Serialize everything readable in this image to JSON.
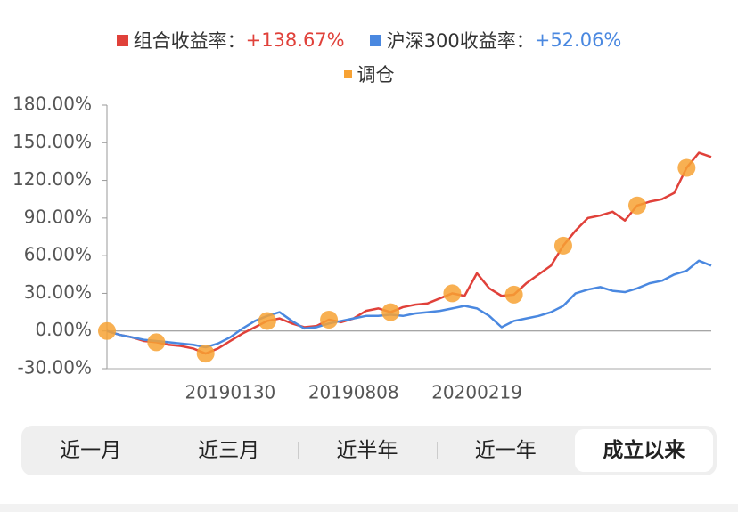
{
  "chart_data": {
    "type": "line",
    "series": [
      {
        "name": "组合收益率：",
        "summary": "+138.67%",
        "color": "#e0413a",
        "values": [
          0,
          -3,
          -5,
          -8,
          -9,
          -11,
          -12,
          -14,
          -18,
          -14,
          -8,
          -2,
          3,
          8,
          10,
          6,
          3,
          4,
          9,
          7,
          10,
          16,
          18,
          15,
          19,
          21,
          22,
          26,
          30,
          28,
          46,
          34,
          28,
          29,
          38,
          45,
          52,
          68,
          80,
          90,
          92,
          95,
          88,
          100,
          103,
          105,
          110,
          130,
          142,
          138.67
        ]
      },
      {
        "name": "沪深300收益率：",
        "summary": "+52.06%",
        "color": "#4a88e0",
        "values": [
          0,
          -3,
          -5,
          -7,
          -8,
          -9,
          -10,
          -11,
          -13,
          -10,
          -5,
          2,
          8,
          12,
          15,
          8,
          2,
          3,
          6,
          8,
          10,
          12,
          12,
          13,
          12,
          14,
          15,
          16,
          18,
          20,
          18,
          12,
          3,
          8,
          10,
          12,
          15,
          20,
          30,
          33,
          35,
          32,
          31,
          34,
          38,
          40,
          45,
          48,
          56,
          52.06
        ]
      },
      {
        "name": "调仓",
        "type": "scatter",
        "color": "#f7a234",
        "values": [
          0,
          null,
          null,
          null,
          -9,
          null,
          null,
          null,
          -18,
          null,
          null,
          null,
          null,
          8,
          null,
          null,
          null,
          null,
          9,
          null,
          null,
          null,
          null,
          15,
          null,
          null,
          null,
          null,
          30,
          null,
          null,
          null,
          null,
          29,
          null,
          null,
          null,
          68,
          null,
          null,
          null,
          null,
          null,
          100,
          null,
          null,
          null,
          130,
          null,
          null
        ]
      }
    ],
    "categories": [
      null,
      null,
      null,
      null,
      null,
      null,
      null,
      null,
      null,
      null,
      "20190130",
      null,
      null,
      null,
      null,
      null,
      null,
      null,
      null,
      null,
      "20190808",
      null,
      null,
      null,
      null,
      null,
      null,
      null,
      null,
      null,
      "20200219",
      null,
      null,
      null,
      null,
      null,
      null,
      null,
      null,
      null,
      null,
      null,
      null,
      null,
      null,
      null,
      null,
      null,
      null,
      null
    ],
    "ylim": [
      -30,
      180
    ],
    "yticks": [
      {
        "value": -30,
        "label": "-30.00%"
      },
      {
        "value": 0,
        "label": "0.00%"
      },
      {
        "value": 30,
        "label": "30.00%"
      },
      {
        "value": 60,
        "label": "60.00%"
      },
      {
        "value": 90,
        "label": "90.00%"
      },
      {
        "value": 120,
        "label": "120.00%"
      },
      {
        "value": 150,
        "label": "150.00%"
      },
      {
        "value": 180,
        "label": "180.00%"
      }
    ],
    "grid": false
  },
  "tabs": {
    "items": [
      "近一月",
      "近三月",
      "近半年",
      "近一年",
      "成立以来"
    ],
    "active": 4
  }
}
